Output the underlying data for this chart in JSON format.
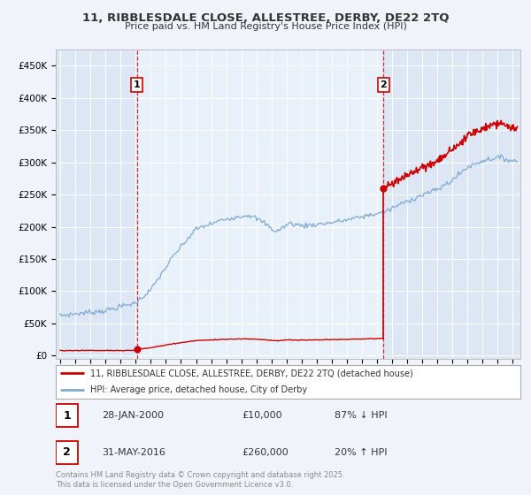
{
  "title1": "11, RIBBLESDALE CLOSE, ALLESTREE, DERBY, DE22 2TQ",
  "title2": "Price paid vs. HM Land Registry's House Price Index (HPI)",
  "background_color": "#f0f4fa",
  "plot_bg_color": "#dce6f5",
  "highlight_bg_color": "#e8f0fa",
  "grid_color": "#ffffff",
  "transaction1_date": 2000.08,
  "transaction1_price": 10000,
  "transaction2_date": 2016.42,
  "transaction2_price": 260000,
  "ylabel_ticks": [
    0,
    50000,
    100000,
    150000,
    200000,
    250000,
    300000,
    350000,
    400000,
    450000
  ],
  "ylabel_labels": [
    "£0",
    "£50K",
    "£100K",
    "£150K",
    "£200K",
    "£250K",
    "£300K",
    "£350K",
    "£400K",
    "£450K"
  ],
  "xlim": [
    1994.7,
    2025.5
  ],
  "ylim": [
    -5000,
    475000
  ],
  "legend_line1": "11, RIBBLESDALE CLOSE, ALLESTREE, DERBY, DE22 2TQ (detached house)",
  "legend_line2": "HPI: Average price, detached house, City of Derby",
  "sale1_date_str": "28-JAN-2000",
  "sale1_price_str": "£10,000",
  "sale1_hpi_str": "87% ↓ HPI",
  "sale2_date_str": "31-MAY-2016",
  "sale2_price_str": "£260,000",
  "sale2_hpi_str": "20% ↑ HPI",
  "footer": "Contains HM Land Registry data © Crown copyright and database right 2025.\nThis data is licensed under the Open Government Licence v3.0.",
  "red_color": "#cc0000",
  "blue_color": "#7eaad4"
}
